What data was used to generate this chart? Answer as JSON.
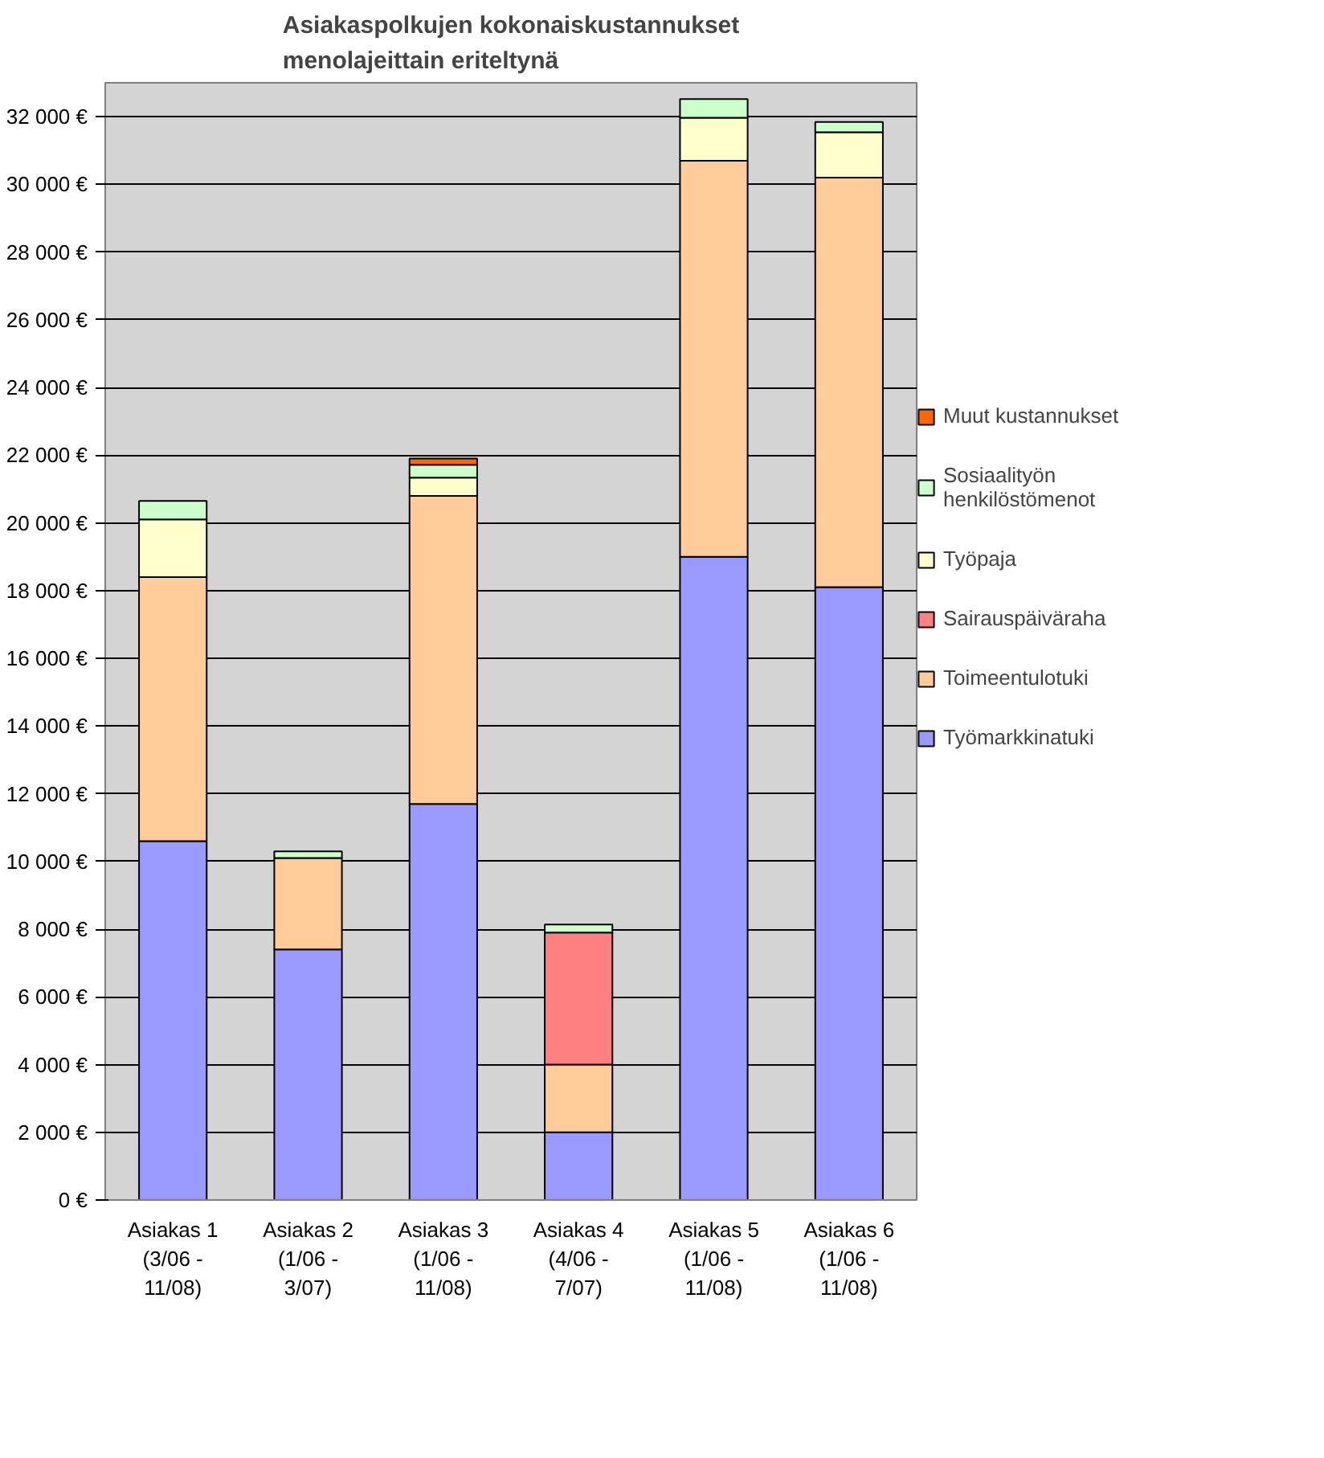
{
  "chart_data": {
    "type": "bar",
    "stacked": true,
    "title": "Asiakaspolkujen kokonaiskustannukset\nmenolajeittain eriteltynä",
    "categories": [
      "Asiakas 1\n(3/06 -\n11/08)",
      "Asiakas 2\n(1/06 -\n3/07)",
      "Asiakas 3\n(1/06 -\n11/08)",
      "Asiakas 4\n(4/06 -\n7/07)",
      "Asiakas 5\n(1/06 -\n11/08)",
      "Asiakas 6\n(1/06 -\n11/08)"
    ],
    "series": [
      {
        "name": "Työmarkkinatuki",
        "color": "#9999ff",
        "values": [
          10600,
          7400,
          11700,
          2000,
          19000,
          18100
        ]
      },
      {
        "name": "Toimeentulotuki",
        "color": "#ffcc99",
        "values": [
          7800,
          2700,
          9100,
          2000,
          11700,
          12100
        ]
      },
      {
        "name": "Sairauspäiväraha",
        "color": "#ff8080",
        "values": [
          0,
          0,
          0,
          3900,
          0,
          0
        ]
      },
      {
        "name": "Työpaja",
        "color": "#ffffcc",
        "values": [
          1700,
          0,
          540,
          0,
          1270,
          1340
        ]
      },
      {
        "name": "Sosiaalityön\nhenkilöstömenot",
        "color": "#ccffcc",
        "values": [
          550,
          200,
          380,
          240,
          550,
          300
        ]
      },
      {
        "name": "Muut kustannukset",
        "color": "#ff6600",
        "values": [
          0,
          0,
          180,
          0,
          0,
          0
        ]
      }
    ],
    "ylim": [
      0,
      33000
    ],
    "yticks": [
      {
        "value": 0,
        "label": "0 €"
      },
      {
        "value": 2000,
        "label": "2 000 €"
      },
      {
        "value": 4000,
        "label": "4 000 €"
      },
      {
        "value": 6000,
        "label": "6 000 €"
      },
      {
        "value": 8000,
        "label": "8 000 €"
      },
      {
        "value": 10000,
        "label": "10 000 €"
      },
      {
        "value": 12000,
        "label": "12 000 €"
      },
      {
        "value": 14000,
        "label": "14 000 €"
      },
      {
        "value": 16000,
        "label": "16 000 €"
      },
      {
        "value": 18000,
        "label": "18 000 €"
      },
      {
        "value": 20000,
        "label": "20 000 €"
      },
      {
        "value": 22000,
        "label": "22 000 €"
      },
      {
        "value": 24000,
        "label": "24 000 €"
      },
      {
        "value": 26000,
        "label": "26 000 €"
      },
      {
        "value": 28000,
        "label": "28 000 €"
      },
      {
        "value": 30000,
        "label": "30 000 €"
      },
      {
        "value": 32000,
        "label": "32 000 €"
      }
    ],
    "grid": "y",
    "legend": "right"
  }
}
